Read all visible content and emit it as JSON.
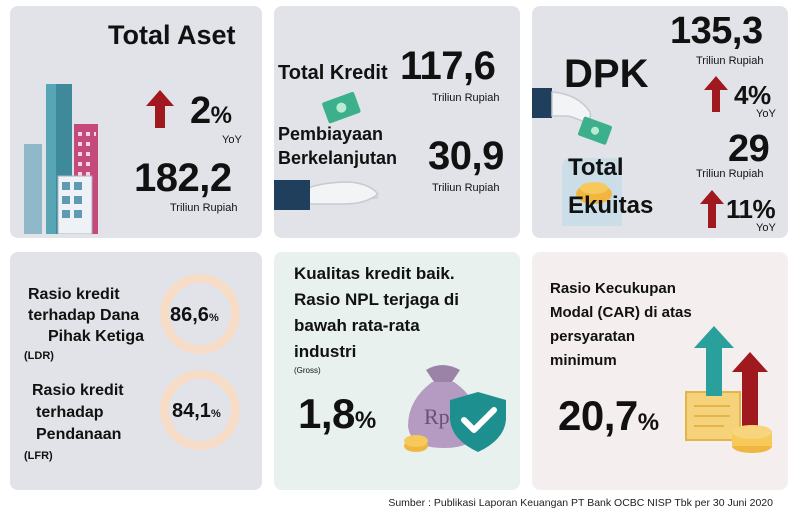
{
  "cards": {
    "total_aset": {
      "title": "Total Aset",
      "growth_value": "2",
      "growth_pct": "%",
      "growth_label": "YoY",
      "amount": "182,2",
      "amount_unit": "Triliun Rupiah"
    },
    "kredit": {
      "total_kredit_label": "Total Kredit",
      "total_kredit_value": "117,6",
      "total_kredit_unit": "Triliun Rupiah",
      "pembiayaan_label_1": "Pembiayaan",
      "pembiayaan_label_2": "Berkelanjutan",
      "pembiayaan_value": "30,9",
      "pembiayaan_unit": "Triliun Rupiah"
    },
    "dpk": {
      "dpk_label": "DPK",
      "dpk_value": "135,3",
      "dpk_unit": "Triliun Rupiah",
      "dpk_growth": "4%",
      "dpk_growth_label": "YoY",
      "ekuitas_label_1": "Total",
      "ekuitas_label_2": "Ekuitas",
      "ekuitas_value": "29",
      "ekuitas_unit": "Triliun Rupiah",
      "ekuitas_growth": "11%",
      "ekuitas_growth_label": "YoY"
    },
    "rasio": {
      "ldr_line_1": "Rasio kredit",
      "ldr_line_2": "terhadap Dana",
      "ldr_line_3": "Pihak Ketiga",
      "ldr_abbr": "(LDR)",
      "ldr_value": "86,6",
      "ldr_pct": "%",
      "lfr_line_1": "Rasio kredit",
      "lfr_line_2": "terhadap",
      "lfr_line_3": "Pendanaan",
      "lfr_abbr": "(LFR)",
      "lfr_value": "84,1",
      "lfr_pct": "%"
    },
    "npl": {
      "line_1": "Kualitas kredit baik.",
      "line_2": "Rasio NPL terjaga di",
      "line_3": "bawah rata-rata",
      "line_4": "industri",
      "gross_label": "(Gross)",
      "value": "1,8",
      "pct": "%",
      "bag_label": "Rp"
    },
    "car": {
      "line_1": "Rasio Kecukupan",
      "line_2": "Modal (CAR) di atas",
      "line_3": "persyaratan",
      "line_4": "minimum",
      "value": "20,7",
      "pct": "%"
    }
  },
  "source": "Sumber : Publikasi Laporan Keuangan PT Bank OCBC NISP Tbk per 30 Juni 2020",
  "colors": {
    "arrow_red": "#a0191e",
    "ring": "#f7dcc7",
    "teal": "#1e8f8f",
    "navy": "#1f3f5c"
  },
  "icons": [
    "city-buildings-icon",
    "money-hand-icon",
    "deposit-jar-icon",
    "money-bag-shield-icon",
    "growth-chart-icon",
    "arrow-up-icon"
  ]
}
